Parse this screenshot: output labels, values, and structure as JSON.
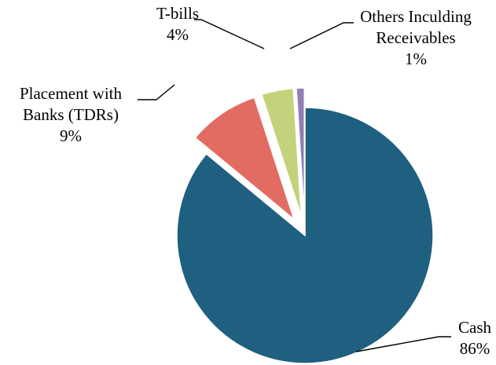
{
  "chart_data": {
    "type": "pie",
    "title": "",
    "slices": [
      {
        "name_lines": [
          "Cash"
        ],
        "percent_label": "86%",
        "value": 86,
        "color": "#1f5f80",
        "exploded": false
      },
      {
        "name_lines": [
          "Placement with",
          "Banks (TDRs)"
        ],
        "percent_label": "9%",
        "value": 9,
        "color": "#e26c61",
        "exploded": true
      },
      {
        "name_lines": [
          "T-bills"
        ],
        "percent_label": "4%",
        "value": 4,
        "color": "#c4d27c",
        "exploded": true
      },
      {
        "name_lines": [
          "Others Inculding",
          "Receivables"
        ],
        "percent_label": "1%",
        "value": 1,
        "color": "#8f7eb3",
        "exploded": true
      }
    ],
    "legend": "none",
    "label_style": "outside with leader lines"
  }
}
